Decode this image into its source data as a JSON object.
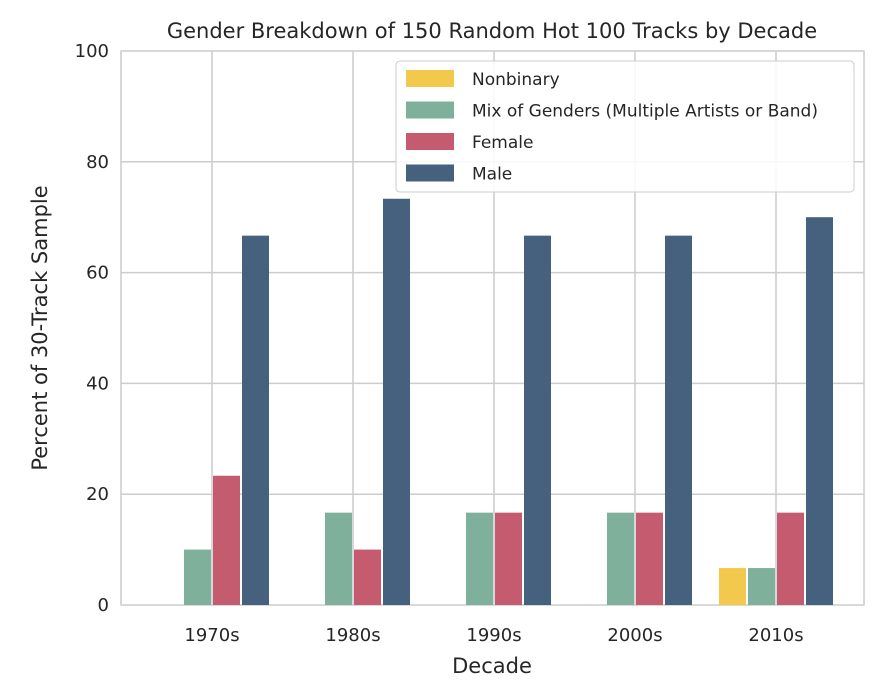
{
  "chart_data": {
    "type": "bar",
    "title": "Gender Breakdown of 150 Random Hot 100 Tracks by Decade",
    "xlabel": "Decade",
    "ylabel": "Percent of 30-Track Sample",
    "ylim": [
      0,
      100
    ],
    "yticks": [
      "0",
      "20",
      "40",
      "60",
      "80",
      "100"
    ],
    "categories": [
      "1970s",
      "1980s",
      "1990s",
      "2000s",
      "2010s"
    ],
    "grid": true,
    "legend_position": "upper right",
    "series": [
      {
        "name": "Nonbinary",
        "color": "#f2c94c",
        "values": [
          0,
          0,
          0,
          0,
          6.67
        ]
      },
      {
        "name": "Mix of Genders (Multiple Artists or Band)",
        "color": "#7fb09c",
        "values": [
          10,
          16.67,
          16.67,
          16.67,
          6.67
        ]
      },
      {
        "name": "Female",
        "color": "#c45b6e",
        "values": [
          23.33,
          10,
          16.67,
          16.67,
          16.67
        ]
      },
      {
        "name": "Male",
        "color": "#45617d",
        "values": [
          66.67,
          73.33,
          66.67,
          66.67,
          70
        ]
      }
    ]
  }
}
